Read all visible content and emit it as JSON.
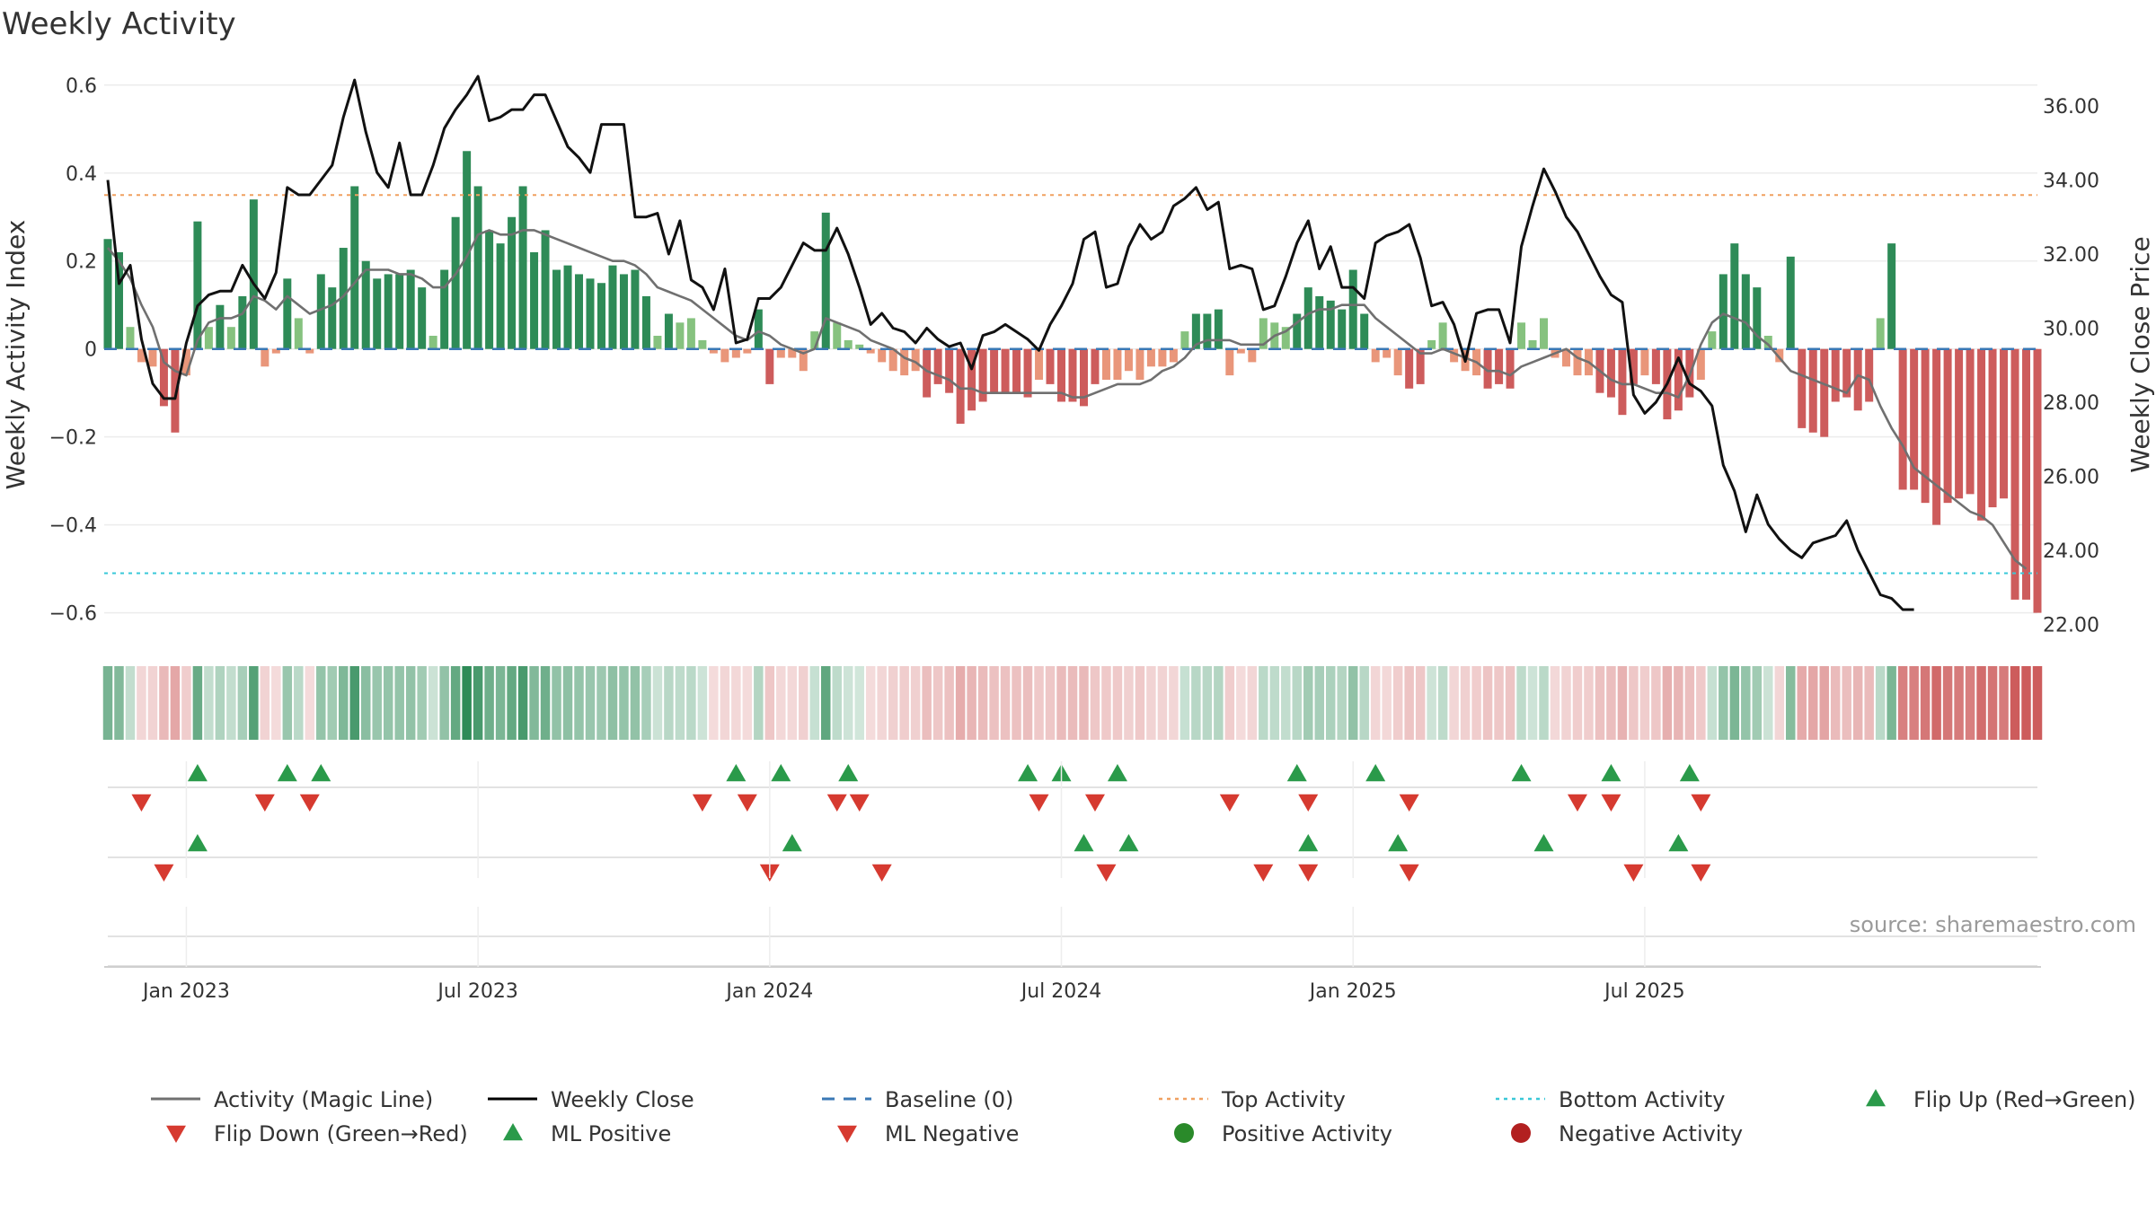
{
  "chart_data": {
    "type": "bar",
    "title": "Weekly Activity",
    "source": "source: sharemaestro.com",
    "ylabel_left": "Weekly Activity Index",
    "ylabel_right": "Weekly Close Price",
    "ylim_left": [
      -0.66,
      0.62
    ],
    "ylim_right": [
      21.6,
      36.8
    ],
    "yticks_left": [
      {
        "v": 0.6,
        "label": "0.6"
      },
      {
        "v": 0.4,
        "label": "0.4"
      },
      {
        "v": 0.2,
        "label": "0.2"
      },
      {
        "v": 0,
        "label": "0"
      },
      {
        "v": -0.2,
        "label": "−0.2"
      },
      {
        "v": -0.4,
        "label": "−0.4"
      },
      {
        "v": -0.6,
        "label": "−0.6"
      }
    ],
    "yticks_right": [
      {
        "v": 36,
        "label": "36.00"
      },
      {
        "v": 34,
        "label": "34.00"
      },
      {
        "v": 32,
        "label": "32.00"
      },
      {
        "v": 30,
        "label": "30.00"
      },
      {
        "v": 28,
        "label": "28.00"
      },
      {
        "v": 26,
        "label": "26.00"
      },
      {
        "v": 24,
        "label": "24.00"
      },
      {
        "v": 22,
        "label": "22.00"
      }
    ],
    "xticks": [
      {
        "week": 7,
        "label": "Jan 2023"
      },
      {
        "week": 33,
        "label": "Jul 2023"
      },
      {
        "week": 59,
        "label": "Jan 2024"
      },
      {
        "week": 85,
        "label": "Jul 2024"
      },
      {
        "week": 111,
        "label": "Jan 2025"
      },
      {
        "week": 137,
        "label": "Jul 2025"
      }
    ],
    "top_activity": 0.35,
    "bottom_activity": -0.51,
    "activity": [
      0.25,
      0.22,
      0.05,
      -0.03,
      -0.04,
      -0.13,
      -0.19,
      -0.06,
      0.29,
      0.05,
      0.1,
      0.05,
      0.12,
      0.34,
      -0.04,
      -0.01,
      0.16,
      0.07,
      -0.01,
      0.17,
      0.14,
      0.23,
      0.37,
      0.2,
      0.16,
      0.17,
      0.17,
      0.18,
      0.14,
      0.03,
      0.18,
      0.3,
      0.45,
      0.37,
      0.27,
      0.24,
      0.3,
      0.37,
      0.22,
      0.27,
      0.18,
      0.19,
      0.17,
      0.16,
      0.15,
      0.19,
      0.17,
      0.18,
      0.12,
      0.03,
      0.08,
      0.06,
      0.07,
      0.02,
      -0.01,
      -0.03,
      -0.02,
      -0.01,
      0.09,
      -0.08,
      -0.02,
      -0.02,
      -0.05,
      0.04,
      0.31,
      0.06,
      0.02,
      0.01,
      -0.01,
      -0.03,
      -0.05,
      -0.06,
      -0.05,
      -0.11,
      -0.08,
      -0.1,
      -0.17,
      -0.14,
      -0.12,
      -0.1,
      -0.1,
      -0.1,
      -0.11,
      -0.07,
      -0.08,
      -0.12,
      -0.12,
      -0.13,
      -0.08,
      -0.07,
      -0.07,
      -0.05,
      -0.07,
      -0.04,
      -0.04,
      -0.03,
      0.04,
      0.08,
      0.08,
      0.09,
      -0.06,
      -0.01,
      -0.03,
      0.07,
      0.06,
      0.05,
      0.08,
      0.14,
      0.12,
      0.11,
      0.09,
      0.18,
      0.08,
      -0.03,
      -0.02,
      -0.06,
      -0.09,
      -0.08,
      0.02,
      0.06,
      -0.03,
      -0.05,
      -0.06,
      -0.09,
      -0.08,
      -0.09,
      0.06,
      0.02,
      0.07,
      -0.02,
      -0.04,
      -0.06,
      -0.06,
      -0.1,
      -0.11,
      -0.15,
      -0.08,
      -0.06,
      -0.08,
      -0.16,
      -0.14,
      -0.11,
      -0.07,
      0.04,
      0.17,
      0.24,
      0.17,
      0.14,
      0.03,
      -0.03,
      0.21,
      -0.18,
      -0.19,
      -0.2,
      -0.12,
      -0.11,
      -0.14,
      -0.12,
      0.07,
      0.24,
      -0.32,
      -0.32,
      -0.35,
      -0.4,
      -0.35,
      -0.34,
      -0.33,
      -0.39,
      -0.36,
      -0.34,
      -0.57,
      -0.57,
      -0.6
    ],
    "magic_line": [
      0.23,
      0.2,
      0.16,
      0.1,
      0.05,
      -0.03,
      -0.05,
      -0.06,
      0.02,
      0.06,
      0.07,
      0.07,
      0.08,
      0.12,
      0.11,
      0.09,
      0.12,
      0.1,
      0.08,
      0.09,
      0.1,
      0.12,
      0.15,
      0.18,
      0.18,
      0.18,
      0.17,
      0.17,
      0.16,
      0.14,
      0.14,
      0.17,
      0.21,
      0.26,
      0.27,
      0.26,
      0.26,
      0.27,
      0.27,
      0.26,
      0.25,
      0.24,
      0.23,
      0.22,
      0.21,
      0.2,
      0.2,
      0.19,
      0.17,
      0.14,
      0.13,
      0.12,
      0.11,
      0.09,
      0.07,
      0.05,
      0.03,
      0.02,
      0.04,
      0.03,
      0.01,
      0,
      -0.01,
      0,
      0.07,
      0.06,
      0.05,
      0.04,
      0.02,
      0.01,
      0,
      -0.02,
      -0.03,
      -0.05,
      -0.06,
      -0.07,
      -0.09,
      -0.09,
      -0.1,
      -0.1,
      -0.1,
      -0.1,
      -0.1,
      -0.1,
      -0.1,
      -0.1,
      -0.11,
      -0.11,
      -0.1,
      -0.09,
      -0.08,
      -0.08,
      -0.08,
      -0.07,
      -0.05,
      -0.04,
      -0.02,
      0.01,
      0.02,
      0.02,
      0.02,
      0.01,
      0.01,
      0.01,
      0.03,
      0.04,
      0.06,
      0.08,
      0.09,
      0.09,
      0.1,
      0.1,
      0.1,
      0.07,
      0.05,
      0.03,
      0.01,
      -0.01,
      -0.01,
      0,
      -0.01,
      -0.02,
      -0.03,
      -0.05,
      -0.05,
      -0.06,
      -0.04,
      -0.03,
      -0.02,
      -0.01,
      0,
      -0.02,
      -0.03,
      -0.05,
      -0.07,
      -0.08,
      -0.08,
      -0.09,
      -0.1,
      -0.1,
      -0.11,
      -0.06,
      0.01,
      0.06,
      0.08,
      0.07,
      0.06,
      0.03,
      0.01,
      -0.02,
      -0.05,
      -0.06,
      -0.07,
      -0.08,
      -0.09,
      -0.1,
      -0.06,
      -0.07,
      -0.13,
      -0.18,
      -0.22,
      -0.27,
      -0.29,
      -0.31,
      -0.33,
      -0.35,
      -0.37,
      -0.38,
      -0.4,
      -0.44,
      -0.48,
      -0.5
    ],
    "weekly_close": [
      34.0,
      31.2,
      31.7,
      29.7,
      28.5,
      28.1,
      28.1,
      29.6,
      30.6,
      30.9,
      31.0,
      31.0,
      31.7,
      31.2,
      30.8,
      31.5,
      33.8,
      33.6,
      33.6,
      34.0,
      34.4,
      35.7,
      36.7,
      35.3,
      34.2,
      33.8,
      35.0,
      33.6,
      33.6,
      34.4,
      35.4,
      35.9,
      36.3,
      36.8,
      35.6,
      35.7,
      35.9,
      35.9,
      36.3,
      36.3,
      35.6,
      34.9,
      34.6,
      34.2,
      35.5,
      35.5,
      35.5,
      33.0,
      33.0,
      33.1,
      32.0,
      32.9,
      31.3,
      31.1,
      30.5,
      31.6,
      29.6,
      29.7,
      30.8,
      30.8,
      31.1,
      31.7,
      32.3,
      32.1,
      32.1,
      32.7,
      32.0,
      31.1,
      30.1,
      30.4,
      30.0,
      29.9,
      29.6,
      30.0,
      29.7,
      29.5,
      29.6,
      28.9,
      29.8,
      29.9,
      30.1,
      29.9,
      29.7,
      29.4,
      30.1,
      30.6,
      31.2,
      32.4,
      32.6,
      31.1,
      31.2,
      32.2,
      32.8,
      32.4,
      32.6,
      33.3,
      33.5,
      33.8,
      33.2,
      33.4,
      31.6,
      31.7,
      31.6,
      30.5,
      30.6,
      31.4,
      32.3,
      32.9,
      31.6,
      32.2,
      31.1,
      31.1,
      30.8,
      32.3,
      32.5,
      32.6,
      32.8,
      31.9,
      30.6,
      30.7,
      30.1,
      29.1,
      30.4,
      30.5,
      30.5,
      29.6,
      32.2,
      33.3,
      34.3,
      33.7,
      33.0,
      32.6,
      32.0,
      31.4,
      30.9,
      30.7,
      28.2,
      27.7,
      28.0,
      28.5,
      29.2,
      28.5,
      28.3,
      27.9,
      26.3,
      25.6,
      24.5,
      25.5,
      24.7,
      24.3,
      24.0,
      23.8,
      24.2,
      24.3,
      24.4,
      24.8,
      24.0,
      23.4,
      22.8,
      22.7,
      22.4,
      22.4
    ],
    "ml_flip_up": [
      8,
      16,
      19,
      56,
      60,
      66,
      82,
      85,
      90,
      106,
      113,
      126,
      134,
      141
    ],
    "ml_flip_down": [
      3,
      14,
      18,
      53,
      57,
      65,
      67,
      83,
      88,
      100,
      107,
      116,
      131,
      134,
      142
    ],
    "activity_flip_up": [
      8,
      61,
      87,
      91,
      107,
      115,
      128,
      140
    ],
    "activity_flip_down": [
      5,
      59,
      69,
      89,
      103,
      107,
      116,
      136,
      142
    ],
    "legend": [
      {
        "label": "Activity (Magic Line)",
        "marker": "line",
        "color": "#707070"
      },
      {
        "label": "Weekly Close",
        "marker": "line",
        "color": "#000000"
      },
      {
        "label": "Baseline (0)",
        "marker": "dashed",
        "color": "#3a78b5"
      },
      {
        "label": "Top Activity",
        "marker": "dotted",
        "color": "#f0a060"
      },
      {
        "label": "Bottom Activity",
        "marker": "dotted",
        "color": "#3ac8d8"
      },
      {
        "label": "Flip Up (Red→Green)",
        "marker": "triangle-up",
        "color": "#2a9a4a"
      },
      {
        "label": "Flip Down (Green→Red)",
        "marker": "triangle-down",
        "color": "#d63a30"
      },
      {
        "label": "ML Positive",
        "marker": "triangle-up",
        "color": "#2a9a4a"
      },
      {
        "label": "ML Negative",
        "marker": "triangle-down",
        "color": "#d63a30"
      },
      {
        "label": "Positive Activity",
        "marker": "dot",
        "color": "#2a8a2a"
      },
      {
        "label": "Negative Activity",
        "marker": "dot",
        "color": "#b22020"
      }
    ],
    "colors": {
      "pos_strong": "#2e8b57",
      "pos_light": "#86c27f",
      "neg_strong": "#cd5c5c",
      "neg_light": "#e9967a",
      "up_marker": "#2a9a4a",
      "down_marker": "#d63a30",
      "close_line": "#111111",
      "magic_line": "#707070",
      "top_line": "#f0a060",
      "bottom_line": "#3ac8d8",
      "baseline": "#3a78b5"
    }
  }
}
